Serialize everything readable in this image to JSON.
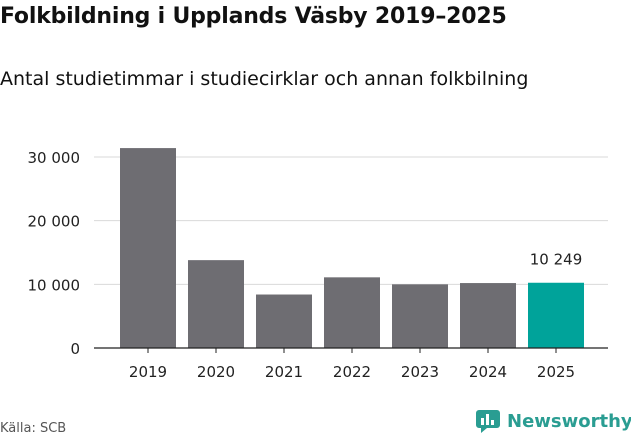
{
  "title": "Folkbildning i Upplands Väsby 2019–2025",
  "subtitle": "Antal studietimmar i studiecirklar och annan folkbilning",
  "source": "Källa: SCB",
  "brand": "Newsworthy",
  "colors": {
    "bar": "#6e6d72",
    "highlight": "#00a39a",
    "grid": "#d9d9d9",
    "axis": "#222222",
    "brand": "#2a9d92"
  },
  "chart_data": {
    "type": "bar",
    "title": "Folkbildning i Upplands Väsby 2019–2025",
    "xlabel": "",
    "ylabel": "",
    "categories": [
      "2019",
      "2020",
      "2021",
      "2022",
      "2023",
      "2024",
      "2025"
    ],
    "values": [
      31400,
      13800,
      8400,
      11100,
      10000,
      10200,
      10249
    ],
    "highlight_index": 6,
    "data_labels": [
      {
        "index": 6,
        "text": "10 249"
      }
    ],
    "ylim": [
      0,
      30000
    ],
    "yticks": [
      0,
      10000,
      20000,
      30000
    ],
    "ytick_labels": [
      "0",
      "10 000",
      "20 000",
      "30 000"
    ],
    "grid": true
  }
}
